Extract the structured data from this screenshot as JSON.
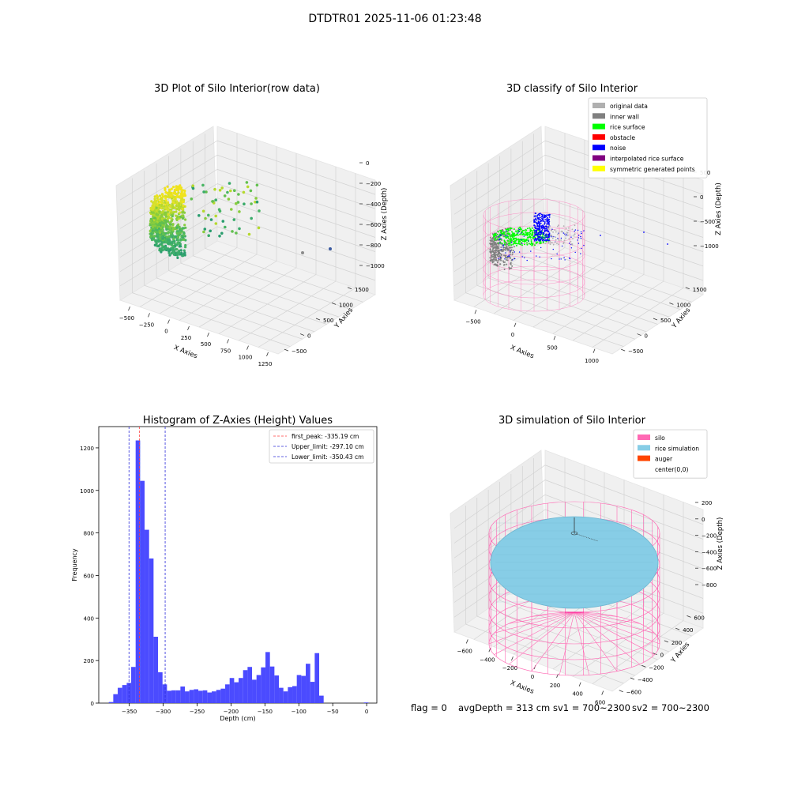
{
  "figure": {
    "suptitle": "DTDTR01 2025-11-06 01:23:48"
  },
  "colors": {
    "histogram_bar": "#4b4bff",
    "first_peak_line": "#ff3b3b",
    "limit_line": "#2b2bd9",
    "silo_wire": "#ff69b4",
    "rice_simulation": "#87cde6",
    "auger": "#ff4500",
    "rice_surface": "#00ff00",
    "noise": "#0000ff",
    "inner_wall": "#808080",
    "original_data": "#b0b0b0",
    "obstacle": "#ff0000",
    "interpolated": "#800080",
    "symmetric": "#ffff00"
  },
  "footer": {
    "flag": "flag = 0",
    "avg_depth": "avgDepth = 313 cm",
    "sv1": "sv1 = 700~2300",
    "sv2": "sv2 = 700~2300"
  },
  "chart_data": [
    {
      "type": "scatter",
      "title": "3D Plot of Silo Interior(row data)",
      "xlabel": "X Axies",
      "ylabel": "Y Axies",
      "zlabel": "Z Axies (Depth)",
      "x_ticks": [
        "−500",
        "−250",
        "0",
        "250",
        "500",
        "750",
        "1000",
        "1250"
      ],
      "y_ticks": [
        "−500",
        "0",
        "500",
        "1000",
        "1500"
      ],
      "z_ticks": [
        "0",
        "−200",
        "−400",
        "−600",
        "−800",
        "−1000"
      ],
      "colormap": "viridis"
    },
    {
      "type": "scatter",
      "title": "3D classify of Silo Interior",
      "xlabel": "X Axies",
      "ylabel": "Y Axies",
      "zlabel": "Z Axies (Depth)",
      "x_ticks": [
        "−500",
        "0",
        "500",
        "1000"
      ],
      "y_ticks": [
        "−500",
        "0",
        "500",
        "1000",
        "1500"
      ],
      "z_ticks": [
        "500",
        "0",
        "−500",
        "−1000"
      ],
      "legend": [
        {
          "label": "original data",
          "color": "#b0b0b0"
        },
        {
          "label": "inner wall",
          "color": "#808080"
        },
        {
          "label": "rice surface",
          "color": "#00ff00"
        },
        {
          "label": "obstacle",
          "color": "#ff0000"
        },
        {
          "label": "noise",
          "color": "#0000ff"
        },
        {
          "label": "interpolated rice surface",
          "color": "#800080"
        },
        {
          "label": "symmetric generated points",
          "color": "#ffff00"
        }
      ],
      "legend_position": "top-right"
    },
    {
      "type": "bar",
      "title": "Histogram of Z-Axies (Height) Values",
      "xlabel": "Depth (cm)",
      "ylabel": "Frequency",
      "xlim": [
        -395,
        15
      ],
      "ylim": [
        0,
        1300
      ],
      "x_ticks": [
        -350,
        -300,
        -250,
        -200,
        -150,
        -100,
        -50,
        0
      ],
      "y_ticks": [
        0,
        200,
        400,
        600,
        800,
        1000,
        1200
      ],
      "bin_width": 6.6,
      "bin_starts": [
        -380.2,
        -373.6,
        -367.0,
        -360.4,
        -353.8,
        -347.2,
        -340.6,
        -334.0,
        -327.4,
        -320.8,
        -314.2,
        -307.6,
        -301.0,
        -294.4,
        -287.8,
        -281.2,
        -274.6,
        -268.0,
        -261.4,
        -254.8,
        -248.2,
        -241.6,
        -235.0,
        -228.4,
        -221.8,
        -215.2,
        -208.6,
        -202.0,
        -195.4,
        -188.8,
        -182.2,
        -175.6,
        -169.0,
        -162.4,
        -155.8,
        -149.2,
        -142.6,
        -136.0,
        -129.4,
        -122.8,
        -116.2,
        -109.6,
        -103.0,
        -96.4,
        -89.8,
        -83.2,
        -76.6,
        -70.0,
        -63.4,
        -56.8,
        -50.2,
        -43.6,
        -37.0,
        -30.4,
        -23.8,
        -17.2,
        -10.6,
        -4.0
      ],
      "counts": [
        5,
        42,
        72,
        85,
        95,
        170,
        1235,
        1045,
        815,
        680,
        312,
        145,
        88,
        58,
        60,
        60,
        78,
        55,
        62,
        65,
        58,
        60,
        50,
        55,
        62,
        68,
        88,
        118,
        98,
        118,
        155,
        170,
        110,
        132,
        168,
        240,
        172,
        130,
        72,
        55,
        75,
        80,
        132,
        128,
        185,
        100,
        235,
        35,
        0,
        0,
        0,
        0,
        0,
        0,
        0,
        0,
        0,
        3
      ],
      "vlines": [
        {
          "label": "first_peak: -335.19 cm",
          "x": -335.19,
          "color": "#ff3b3b"
        },
        {
          "label": "Upper_limit: -297.10 cm",
          "x": -297.1,
          "color": "#2b2bd9"
        },
        {
          "label": "Lower_limit: -350.43 cm",
          "x": -350.43,
          "color": "#2b2bd9"
        }
      ],
      "legend_position": "top-right"
    },
    {
      "type": "scatter",
      "title": "3D simulation of Silo Interior",
      "xlabel": "X Axies",
      "ylabel": "Y Axies",
      "zlabel": "Z Axies (Depth)",
      "x_ticks": [
        "−600",
        "−400",
        "−200",
        "0",
        "200",
        "400",
        "600"
      ],
      "y_ticks": [
        "−600",
        "−400",
        "−200",
        "0",
        "200",
        "400",
        "600"
      ],
      "z_ticks": [
        "200",
        "0",
        "−200",
        "−400",
        "−600",
        "−800"
      ],
      "legend": [
        {
          "label": "silo",
          "color": "#ff69b4"
        },
        {
          "label": "rice simulation",
          "color": "#87cde6"
        },
        {
          "label": "auger",
          "color": "#ff4500"
        },
        {
          "label": "center(0,0)",
          "color": ""
        }
      ],
      "legend_position": "top-right"
    }
  ]
}
